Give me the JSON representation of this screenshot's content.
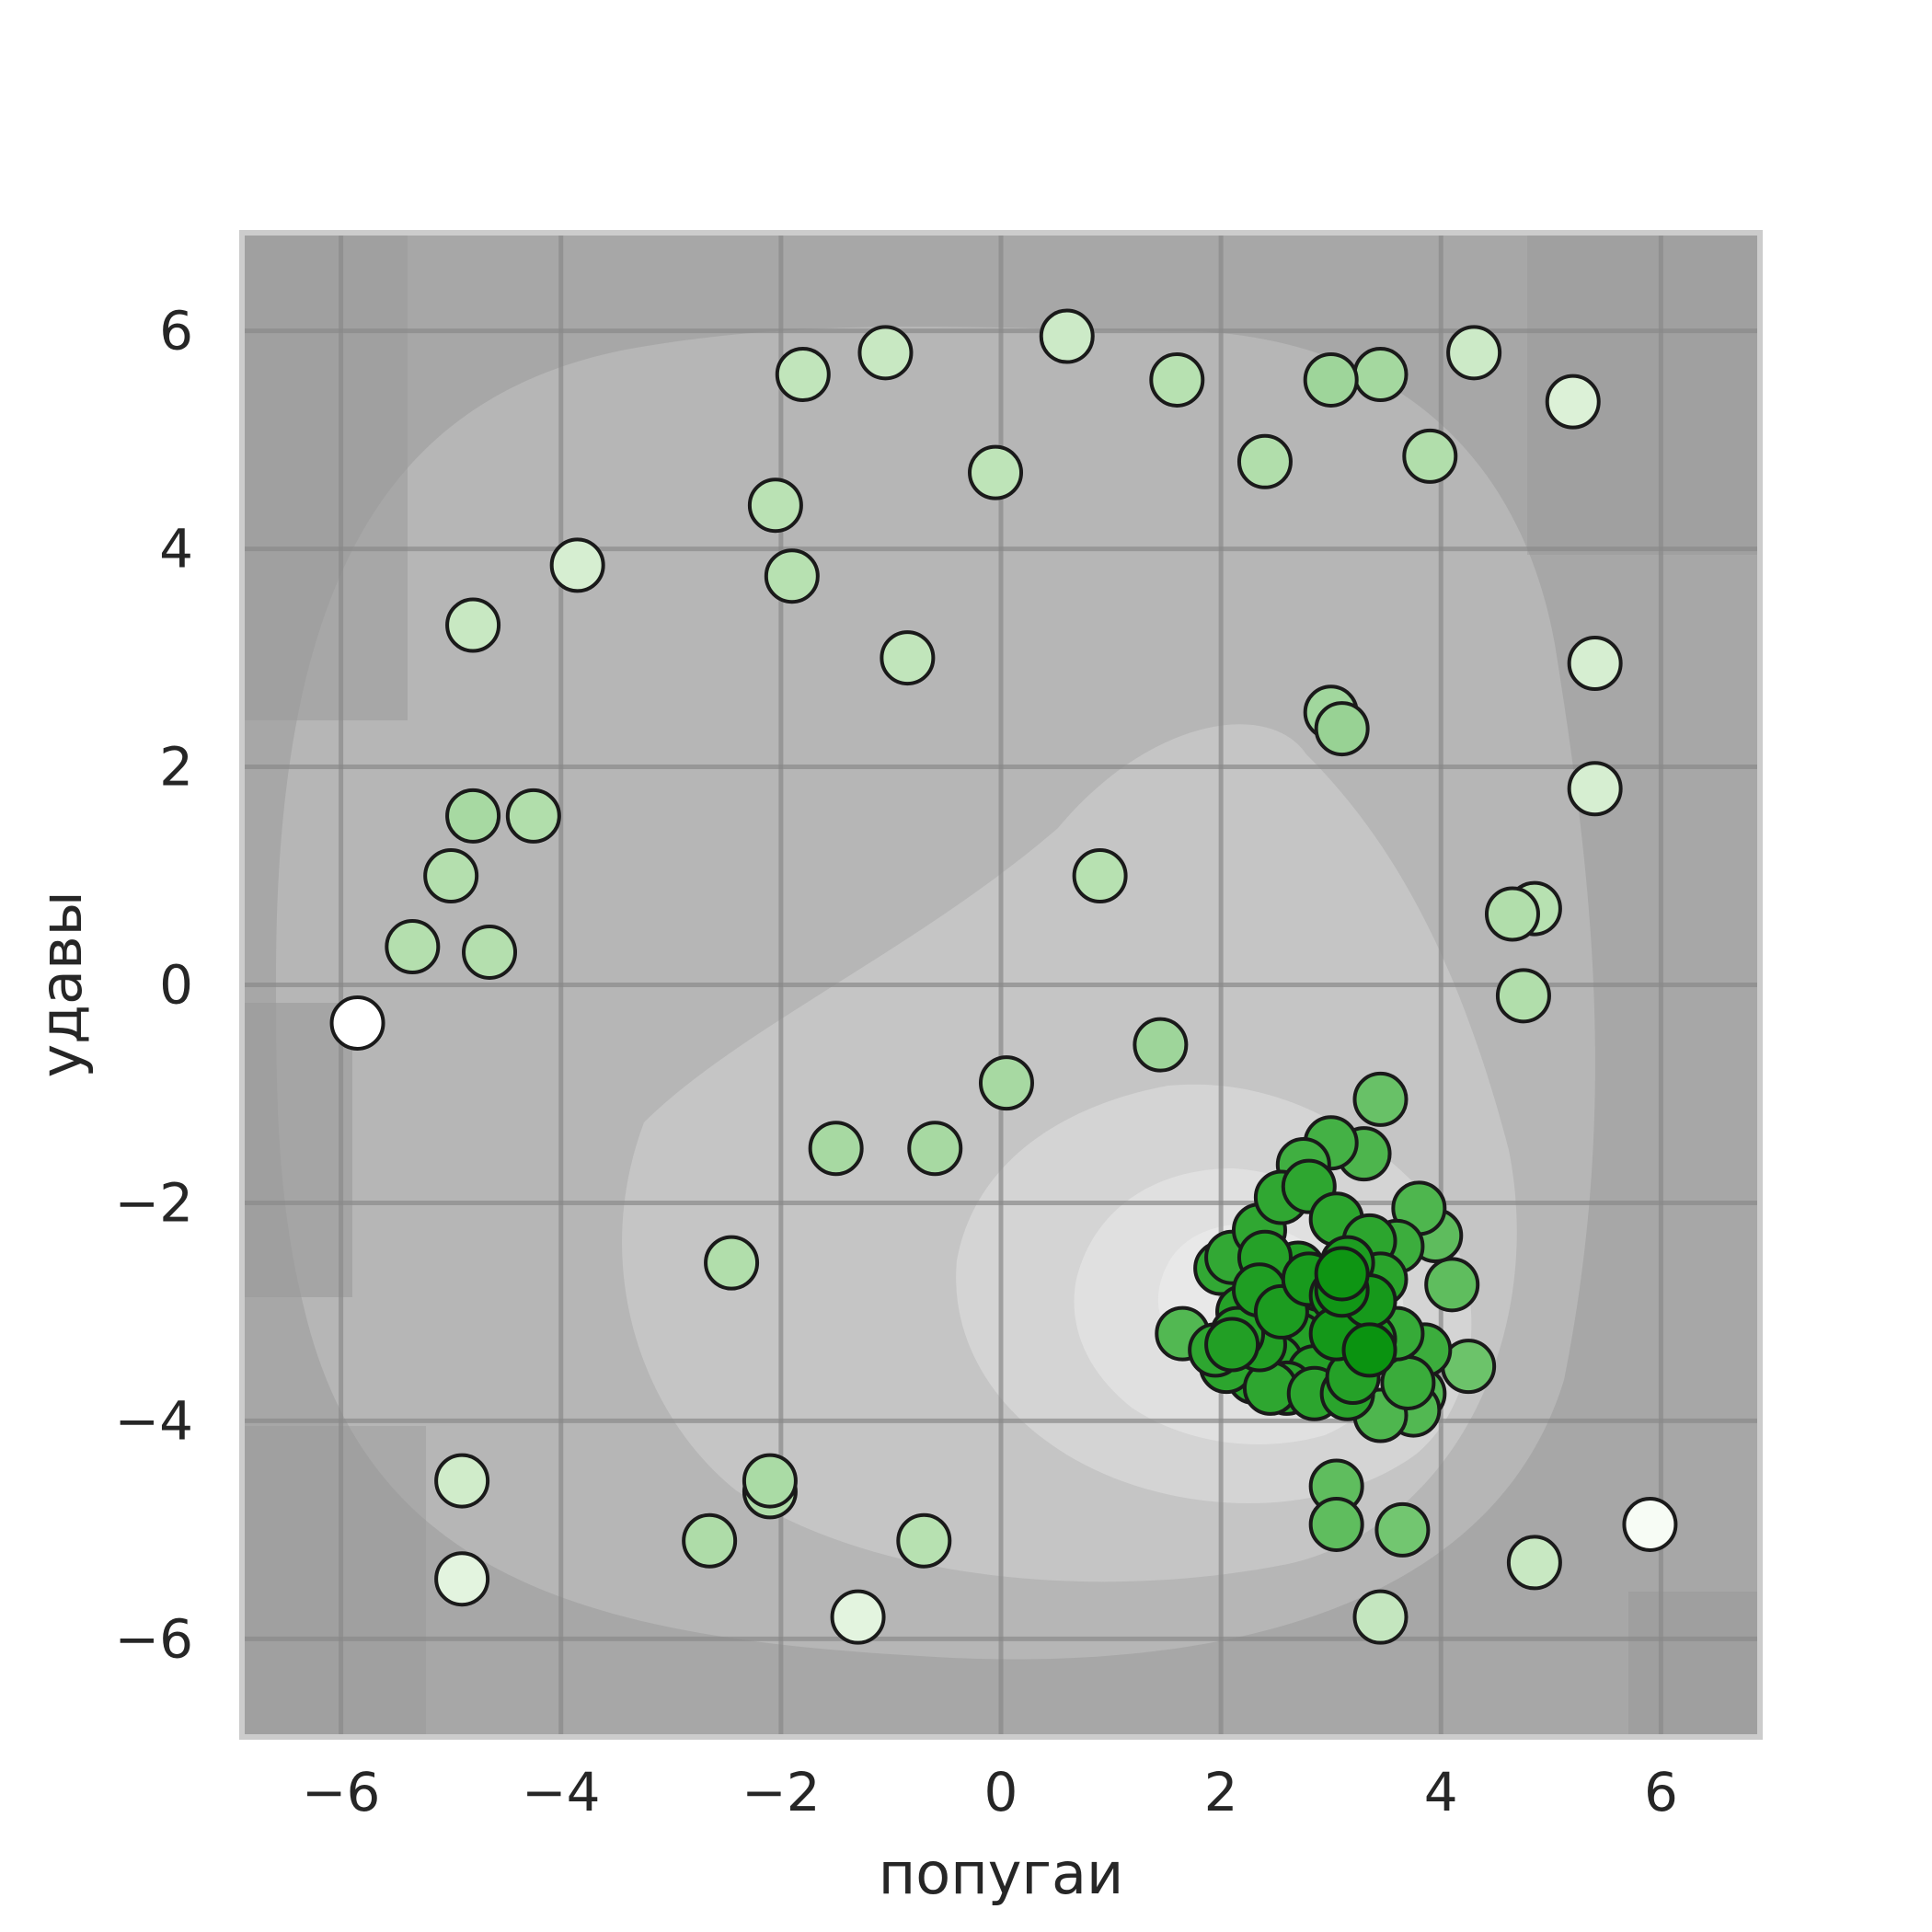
{
  "chart_data": {
    "type": "scatter",
    "title": "",
    "xlabel": "попугаи",
    "ylabel": "удавы",
    "xlim": [
      -6.9,
      6.9
    ],
    "ylim": [
      -6.9,
      6.9
    ],
    "xticks": [
      -6,
      -4,
      -2,
      0,
      2,
      4,
      6
    ],
    "yticks": [
      -6,
      -4,
      -2,
      0,
      2,
      4,
      6
    ],
    "xtick_labels": [
      "−6",
      "−4",
      "−2",
      "0",
      "2",
      "4",
      "6"
    ],
    "ytick_labels": [
      "−6",
      "−4",
      "−2",
      "0",
      "2",
      "4",
      "6"
    ],
    "grid": true,
    "background": "grayscale density contour (lighter = denser), peak near (3, -3)",
    "marker_edge_color": "#1a1a1a",
    "colormap": "Greens (darker = higher density)",
    "points": [
      {
        "x": -5.85,
        "y": -0.35,
        "color": "#ffffff"
      },
      {
        "x": 5.9,
        "y": -4.95,
        "color": "#f7fcf5"
      },
      {
        "x": -4.9,
        "y": -5.45,
        "color": "#e3f4df"
      },
      {
        "x": -1.3,
        "y": -5.8,
        "color": "#e3f4df"
      },
      {
        "x": 5.2,
        "y": 5.35,
        "color": "#dcf1d7"
      },
      {
        "x": -3.85,
        "y": 3.85,
        "color": "#d6eed1"
      },
      {
        "x": 5.4,
        "y": 2.95,
        "color": "#d6eed1"
      },
      {
        "x": 5.4,
        "y": 1.8,
        "color": "#d6eed1"
      },
      {
        "x": -4.9,
        "y": -4.55,
        "color": "#d0ecca"
      },
      {
        "x": 4.3,
        "y": 5.8,
        "color": "#cceac7"
      },
      {
        "x": 0.6,
        "y": 5.95,
        "color": "#cceac7"
      },
      {
        "x": -1.05,
        "y": 5.8,
        "color": "#c8e8c2"
      },
      {
        "x": -4.8,
        "y": 3.3,
        "color": "#c8e8c2"
      },
      {
        "x": 4.85,
        "y": -5.3,
        "color": "#c8e8c2"
      },
      {
        "x": 3.45,
        "y": -5.8,
        "color": "#c4e6bf"
      },
      {
        "x": -1.8,
        "y": 5.6,
        "color": "#c1e5bb"
      },
      {
        "x": -0.85,
        "y": 3.0,
        "color": "#c1e5bb"
      },
      {
        "x": -0.05,
        "y": 4.7,
        "color": "#bee4b8"
      },
      {
        "x": -2.05,
        "y": 4.4,
        "color": "#bae2b4"
      },
      {
        "x": -1.9,
        "y": 3.75,
        "color": "#b7e1b1"
      },
      {
        "x": 1.6,
        "y": 5.55,
        "color": "#b7e1b1"
      },
      {
        "x": 0.9,
        "y": 1.0,
        "color": "#b7e1b1"
      },
      {
        "x": 4.85,
        "y": 0.7,
        "color": "#b7e1b1"
      },
      {
        "x": -0.7,
        "y": -5.1,
        "color": "#b7e1b1"
      },
      {
        "x": -5.35,
        "y": 0.35,
        "color": "#b4dfae"
      },
      {
        "x": -4.65,
        "y": 0.3,
        "color": "#b4dfae"
      },
      {
        "x": -5.0,
        "y": 1.0,
        "color": "#b4dfae"
      },
      {
        "x": -4.25,
        "y": 1.55,
        "color": "#b1deab"
      },
      {
        "x": 2.4,
        "y": 4.8,
        "color": "#b1deab"
      },
      {
        "x": 3.9,
        "y": 4.85,
        "color": "#b1deab"
      },
      {
        "x": 4.65,
        "y": 0.65,
        "color": "#b1deab"
      },
      {
        "x": 4.75,
        "y": -0.1,
        "color": "#b1deab"
      },
      {
        "x": -2.45,
        "y": -2.55,
        "color": "#b1deab"
      },
      {
        "x": -2.65,
        "y": -5.1,
        "color": "#aedca8"
      },
      {
        "x": -2.1,
        "y": -4.65,
        "color": "#aedca8"
      },
      {
        "x": -2.1,
        "y": -4.55,
        "color": "#aadba5"
      },
      {
        "x": -4.8,
        "y": 1.55,
        "color": "#a7d9a2"
      },
      {
        "x": -1.5,
        "y": -1.5,
        "color": "#a7d9a2"
      },
      {
        "x": -0.6,
        "y": -1.5,
        "color": "#a7d9a2"
      },
      {
        "x": 0.05,
        "y": -0.9,
        "color": "#a7d9a2"
      },
      {
        "x": 3.45,
        "y": 5.6,
        "color": "#a4d89f"
      },
      {
        "x": 3.0,
        "y": 5.55,
        "color": "#9ed59a"
      },
      {
        "x": 1.45,
        "y": -0.55,
        "color": "#9ed59a"
      },
      {
        "x": 3.0,
        "y": 2.5,
        "color": "#a1d79d"
      },
      {
        "x": 3.1,
        "y": 2.35,
        "color": "#98d294"
      },
      {
        "x": 4.25,
        "y": -3.5,
        "color": "#6cc36a"
      },
      {
        "x": 3.45,
        "y": -1.05,
        "color": "#68c167"
      },
      {
        "x": 3.65,
        "y": -5.0,
        "color": "#72c670"
      },
      {
        "x": 3.05,
        "y": -4.6,
        "color": "#5fbd5e"
      },
      {
        "x": 3.05,
        "y": -4.95,
        "color": "#5fbd5e"
      },
      {
        "x": 1.65,
        "y": -3.2,
        "color": "#52b852"
      },
      {
        "x": 4.1,
        "y": -2.75,
        "color": "#5fbd5e"
      },
      {
        "x": 3.95,
        "y": -2.3,
        "color": "#5ebc5d"
      },
      {
        "x": 3.8,
        "y": -3.75,
        "color": "#55b955"
      },
      {
        "x": 3.75,
        "y": -3.9,
        "color": "#52b852"
      },
      {
        "x": 3.45,
        "y": -3.95,
        "color": "#4eb64e"
      },
      {
        "x": 3.8,
        "y": -2.05,
        "color": "#4eb64e"
      },
      {
        "x": 3.3,
        "y": -1.55,
        "color": "#4db54d"
      },
      {
        "x": 3.0,
        "y": -1.45,
        "color": "#44b145"
      },
      {
        "x": 2.75,
        "y": -1.65,
        "color": "#40af41"
      },
      {
        "x": 3.6,
        "y": -2.4,
        "color": "#3cad3d"
      },
      {
        "x": 3.85,
        "y": -3.35,
        "color": "#3cad3d"
      },
      {
        "x": 3.7,
        "y": -3.65,
        "color": "#3aac3b"
      },
      {
        "x": 3.6,
        "y": -3.2,
        "color": "#36aa38"
      },
      {
        "x": 2.25,
        "y": -2.7,
        "color": "#34a936"
      },
      {
        "x": 2.0,
        "y": -2.6,
        "color": "#32a834"
      },
      {
        "x": 2.1,
        "y": -2.5,
        "color": "#32a834"
      },
      {
        "x": 2.35,
        "y": -2.25,
        "color": "#30a732"
      },
      {
        "x": 2.55,
        "y": -1.95,
        "color": "#30a732"
      },
      {
        "x": 2.8,
        "y": -1.85,
        "color": "#2ea630"
      },
      {
        "x": 3.05,
        "y": -2.15,
        "color": "#2ca52e"
      },
      {
        "x": 3.35,
        "y": -2.35,
        "color": "#2ca52e"
      },
      {
        "x": 3.45,
        "y": -2.7,
        "color": "#2aa42c"
      },
      {
        "x": 3.25,
        "y": -2.95,
        "color": "#27a22a"
      },
      {
        "x": 2.95,
        "y": -3.1,
        "color": "#25a128"
      },
      {
        "x": 2.7,
        "y": -3.25,
        "color": "#25a128"
      },
      {
        "x": 2.5,
        "y": -3.45,
        "color": "#27a22a"
      },
      {
        "x": 2.3,
        "y": -3.6,
        "color": "#2aa42c"
      },
      {
        "x": 2.05,
        "y": -3.5,
        "color": "#2ca52e"
      },
      {
        "x": 1.95,
        "y": -3.35,
        "color": "#2ea630"
      },
      {
        "x": 2.2,
        "y": -3.0,
        "color": "#25a128"
      },
      {
        "x": 2.45,
        "y": -2.85,
        "color": "#22a026"
      },
      {
        "x": 2.7,
        "y": -2.6,
        "color": "#229f25"
      },
      {
        "x": 2.9,
        "y": -2.75,
        "color": "#1f9e23"
      },
      {
        "x": 3.15,
        "y": -2.55,
        "color": "#1d9d21"
      },
      {
        "x": 3.35,
        "y": -3.25,
        "color": "#1f9e23"
      },
      {
        "x": 3.1,
        "y": -3.45,
        "color": "#229f25"
      },
      {
        "x": 2.85,
        "y": -3.55,
        "color": "#25a128"
      },
      {
        "x": 2.6,
        "y": -3.7,
        "color": "#2aa42c"
      },
      {
        "x": 2.45,
        "y": -3.7,
        "color": "#2ea630"
      },
      {
        "x": 2.85,
        "y": -3.75,
        "color": "#2ca52e"
      },
      {
        "x": 3.15,
        "y": -3.75,
        "color": "#2aa42c"
      },
      {
        "x": 3.2,
        "y": -3.6,
        "color": "#25a128"
      },
      {
        "x": 2.4,
        "y": -2.5,
        "color": "#25a128"
      },
      {
        "x": 2.35,
        "y": -3.3,
        "color": "#229f25"
      },
      {
        "x": 2.15,
        "y": -3.2,
        "color": "#25a128"
      },
      {
        "x": 2.1,
        "y": -3.3,
        "color": "#229f25"
      },
      {
        "x": 2.35,
        "y": -2.8,
        "color": "#1f9e23"
      },
      {
        "x": 2.55,
        "y": -3.0,
        "color": "#1c9c20"
      },
      {
        "x": 2.8,
        "y": -2.7,
        "color": "#189a1d"
      },
      {
        "x": 3.05,
        "y": -2.85,
        "color": "#16991b"
      },
      {
        "x": 3.2,
        "y": -3.05,
        "color": "#149819"
      },
      {
        "x": 3.05,
        "y": -3.2,
        "color": "#149819"
      },
      {
        "x": 3.35,
        "y": -2.9,
        "color": "#16991b"
      },
      {
        "x": 3.1,
        "y": -2.8,
        "color": "#119616"
      },
      {
        "x": 3.1,
        "y": -2.65,
        "color": "#0e9513"
      },
      {
        "x": 3.35,
        "y": -3.35,
        "color": "#0a9310"
      }
    ]
  }
}
